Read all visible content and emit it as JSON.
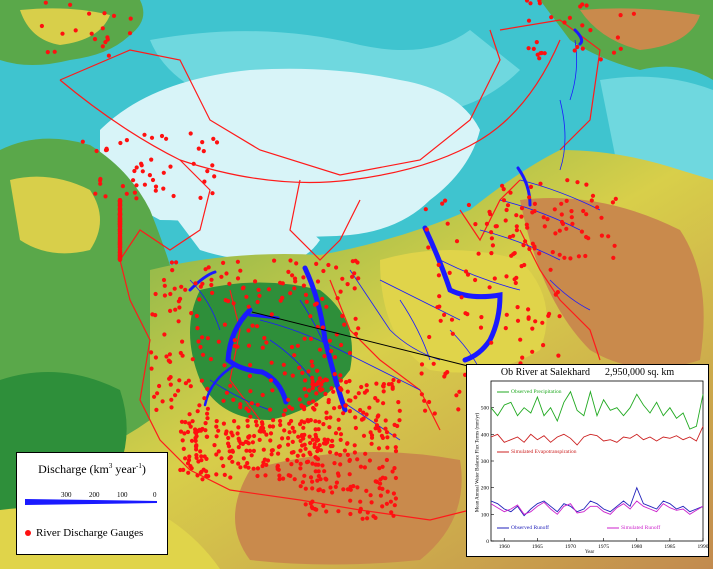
{
  "legend": {
    "title_text": "Discharge (km",
    "title_exp1": "3",
    "title_mid": " year",
    "title_exp2": "-1",
    "title_end": ")",
    "ticks": [
      "300",
      "200",
      "100",
      "0"
    ],
    "gauge_label": "River Discharge Gauges"
  },
  "colors": {
    "river": "#1a1aff",
    "gauge": "#ff1010",
    "basin_boundary": "#ff1a1a",
    "ocean_ice": "#d8f4f8",
    "ocean_shelf": "#3fc4cf",
    "lowland": "#2e8f3a",
    "upland": "#e0d44a",
    "mountain": "#c98a4c"
  },
  "chart_data": {
    "type": "line",
    "title": "Ob River at Salekhard      2,950,000 sq. km",
    "ylabel": "Mean Annual Water Balance Flux Terms (mm/yr)",
    "xlabel": "Year",
    "xlim": [
      1958,
      1990
    ],
    "ylim": [
      0,
      600
    ],
    "xticks": [
      "1960",
      "1965",
      "1970",
      "1975",
      "1980",
      "1985",
      "1990"
    ],
    "yticks": [
      "0",
      "100",
      "200",
      "300",
      "400",
      "500"
    ],
    "x": [
      1958,
      1959,
      1960,
      1961,
      1962,
      1963,
      1964,
      1965,
      1966,
      1967,
      1968,
      1969,
      1970,
      1971,
      1972,
      1973,
      1974,
      1975,
      1976,
      1977,
      1978,
      1979,
      1980,
      1981,
      1982,
      1983,
      1984,
      1985,
      1986,
      1987,
      1988,
      1989,
      1990
    ],
    "series": [
      {
        "name": "Observed Precipitation",
        "color": "#22aa22",
        "values": [
          500,
          470,
          510,
          520,
          470,
          500,
          480,
          540,
          470,
          500,
          450,
          520,
          560,
          490,
          470,
          560,
          470,
          530,
          490,
          500,
          470,
          500,
          550,
          510,
          480,
          520,
          470,
          500,
          460,
          480,
          420,
          430,
          550
        ]
      },
      {
        "name": "Simulated Evapotranspiration",
        "color": "#cc2222",
        "values": [
          390,
          400,
          370,
          380,
          390,
          370,
          400,
          380,
          395,
          370,
          390,
          400,
          385,
          360,
          390,
          400,
          395,
          375,
          380,
          370,
          390,
          385,
          400,
          380,
          390,
          375,
          390,
          385,
          395,
          380,
          390,
          375,
          430
        ]
      },
      {
        "name": "Observed Runoff",
        "color": "#2222bb",
        "values": [
          150,
          140,
          120,
          110,
          130,
          95,
          120,
          140,
          150,
          130,
          110,
          140,
          130,
          110,
          120,
          150,
          140,
          120,
          110,
          130,
          150,
          130,
          200,
          140,
          130,
          120,
          150,
          140,
          120,
          130,
          110,
          120,
          130
        ]
      },
      {
        "name": "Simulated Runoff",
        "color": "#cc22cc",
        "values": [
          140,
          125,
          110,
          120,
          135,
          100,
          110,
          130,
          145,
          120,
          100,
          130,
          140,
          105,
          110,
          130,
          130,
          110,
          100,
          125,
          140,
          120,
          150,
          130,
          120,
          110,
          140,
          125,
          115,
          120,
          100,
          115,
          130
        ]
      }
    ]
  }
}
